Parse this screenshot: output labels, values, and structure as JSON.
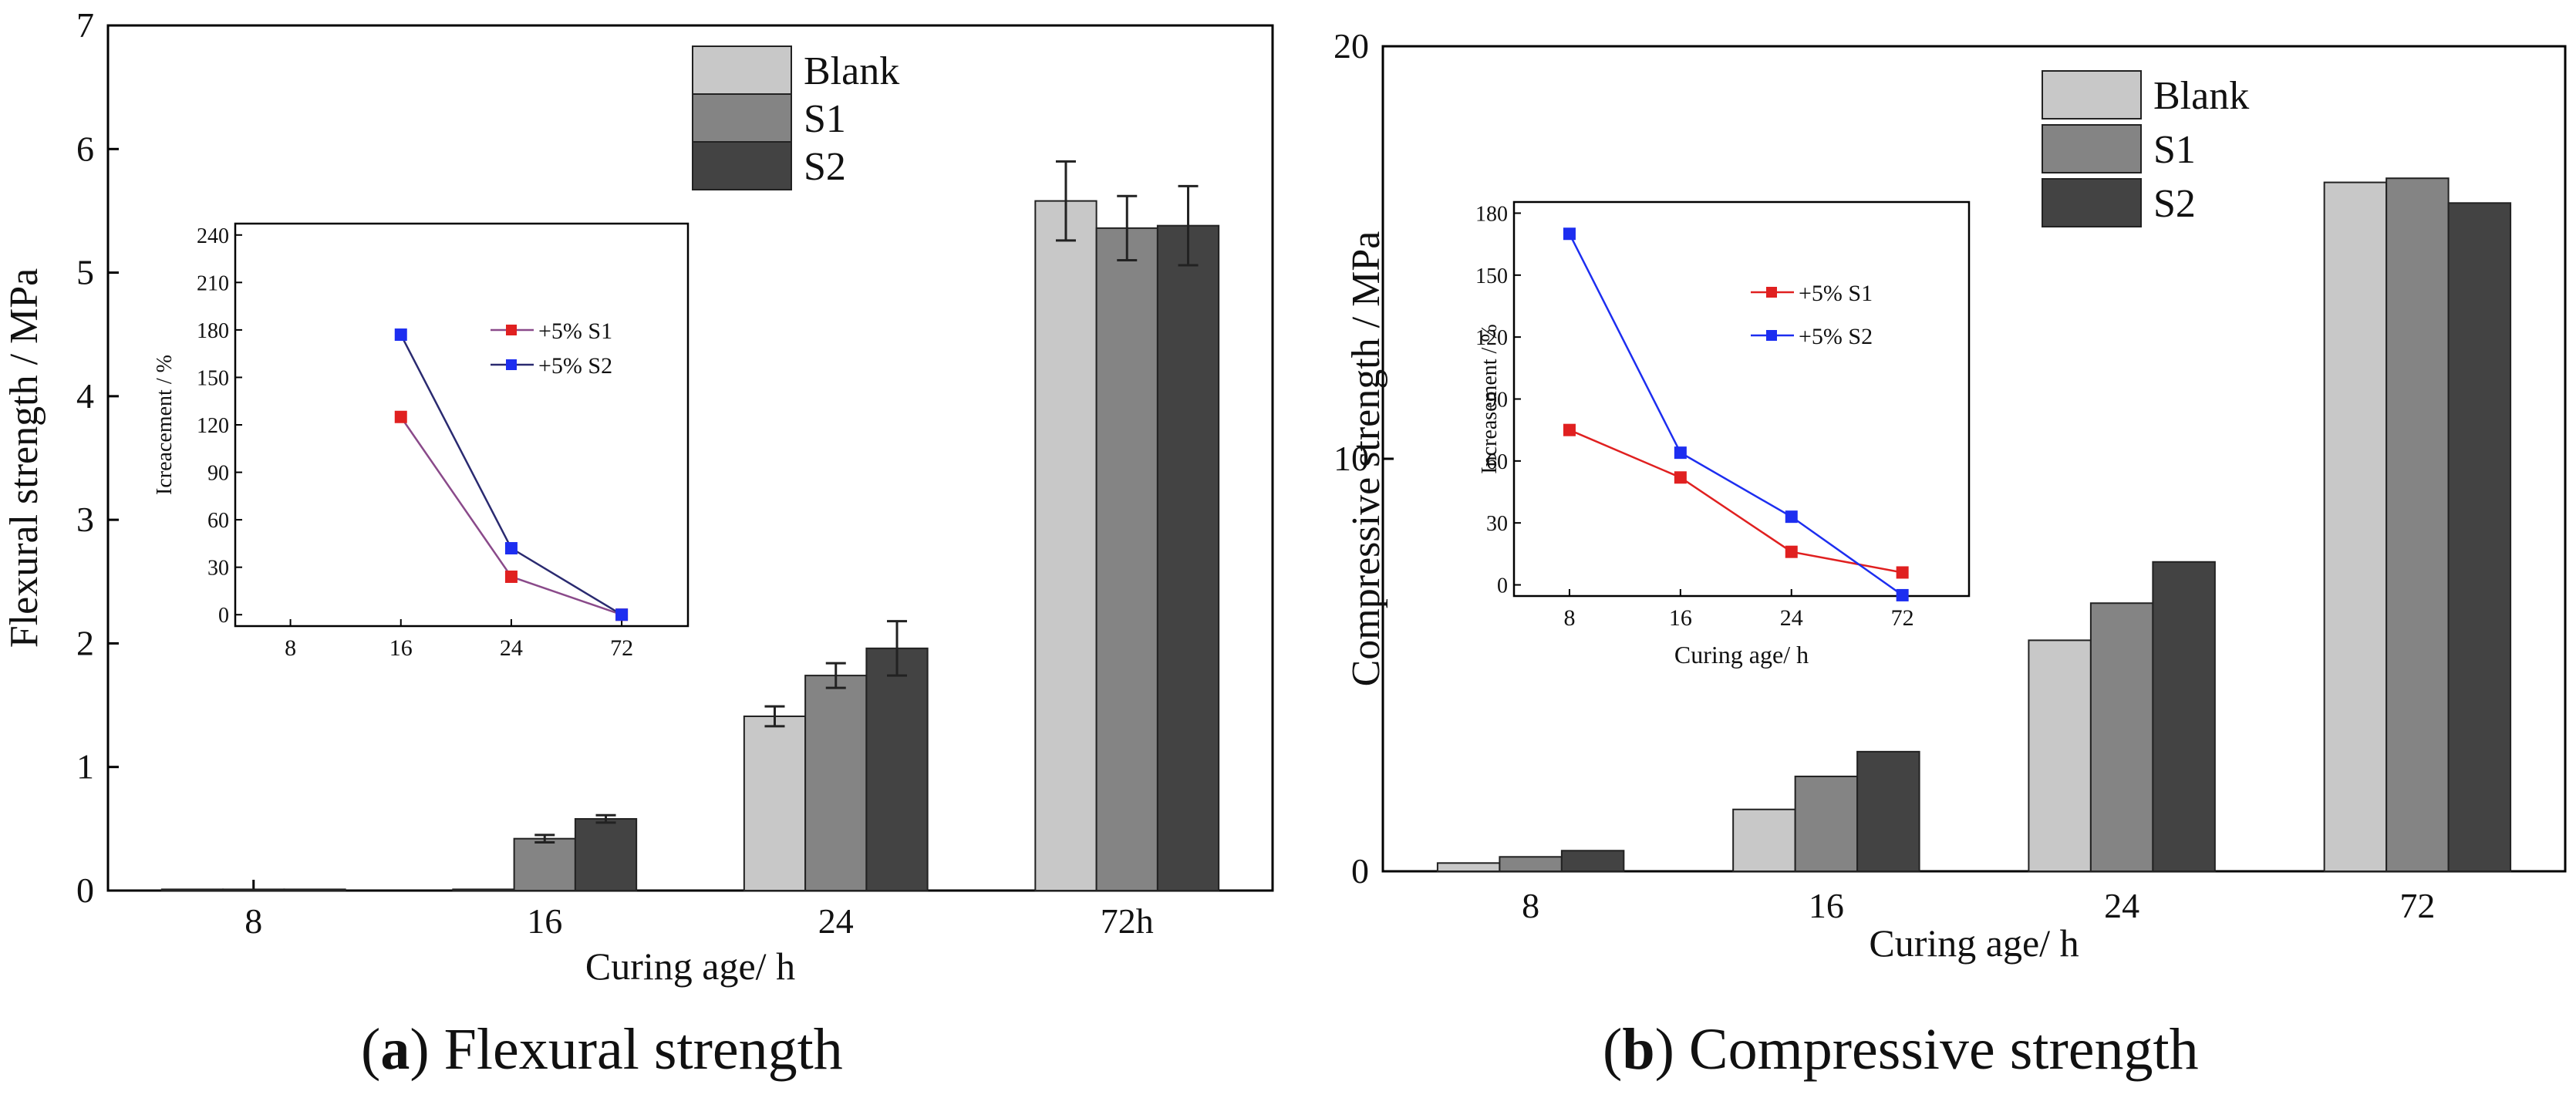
{
  "colors": {
    "blank": "#c8c8c8",
    "s1": "#848484",
    "s2": "#434343",
    "axis": "#000000",
    "red": "#e02020",
    "blue": "#1d2ef0",
    "navy": "#1e2a9a"
  },
  "captions": [
    {
      "letter": "a",
      "text": " Flexural strength"
    },
    {
      "letter": "b",
      "text": " Compressive strength"
    }
  ],
  "chart_data": [
    {
      "type": "bar",
      "title": "Flexural strength",
      "xlabel": "Curing age/ h",
      "ylabel": "Flexural strength / MPa",
      "categories": [
        "8",
        "16",
        "24",
        "72h"
      ],
      "ylim": [
        0,
        7
      ],
      "yticks": [
        0,
        1,
        2,
        3,
        4,
        5,
        6,
        7
      ],
      "legend_position": "top-right",
      "series": [
        {
          "name": "Blank",
          "values": [
            0.01,
            0.01,
            1.41,
            5.58
          ],
          "errors": [
            0,
            0,
            0.08,
            0.32
          ]
        },
        {
          "name": "S1",
          "values": [
            0.01,
            0.42,
            1.74,
            5.36
          ],
          "errors": [
            0,
            0.03,
            0.1,
            0.26
          ]
        },
        {
          "name": "S2",
          "values": [
            0.01,
            0.58,
            1.96,
            5.38
          ],
          "errors": [
            0,
            0.03,
            0.22,
            0.32
          ]
        }
      ],
      "inset": {
        "type": "line",
        "xlabel": "",
        "ylabel": "Icreacement / %",
        "categories": [
          "8",
          "16",
          "24",
          "72"
        ],
        "ylim": [
          0,
          240
        ],
        "yticks": [
          0,
          30,
          60,
          90,
          120,
          150,
          180,
          210,
          240
        ],
        "series": [
          {
            "name": "+5% S1",
            "values": [
              null,
              125,
              24,
              0
            ]
          },
          {
            "name": "+5% S2",
            "values": [
              null,
              177,
              42,
              0
            ]
          }
        ]
      }
    },
    {
      "type": "bar",
      "title": "Compressive strength",
      "xlabel": "Curing age/ h",
      "ylabel": "Compressive strength / MPa",
      "categories": [
        "8",
        "16",
        "24",
        "72"
      ],
      "ylim": [
        0,
        20
      ],
      "yticks": [
        0,
        10,
        20
      ],
      "legend_position": "top-right",
      "series": [
        {
          "name": "Blank",
          "values": [
            0.2,
            1.5,
            5.6,
            16.7
          ]
        },
        {
          "name": "S1",
          "values": [
            0.35,
            2.3,
            6.5,
            16.8
          ]
        },
        {
          "name": "S2",
          "values": [
            0.5,
            2.9,
            7.5,
            16.2
          ]
        }
      ],
      "inset": {
        "type": "line",
        "xlabel": "Curing age/ h",
        "ylabel": "Increasement / %",
        "categories": [
          "8",
          "16",
          "24",
          "72"
        ],
        "ylim": [
          0,
          180
        ],
        "yticks": [
          0,
          30,
          60,
          90,
          120,
          150,
          180
        ],
        "series": [
          {
            "name": "+5% S1",
            "values": [
              75,
              52,
              16,
              6
            ]
          },
          {
            "name": "+5% S2",
            "values": [
              170,
              64,
              33,
              -5
            ]
          }
        ]
      }
    }
  ]
}
